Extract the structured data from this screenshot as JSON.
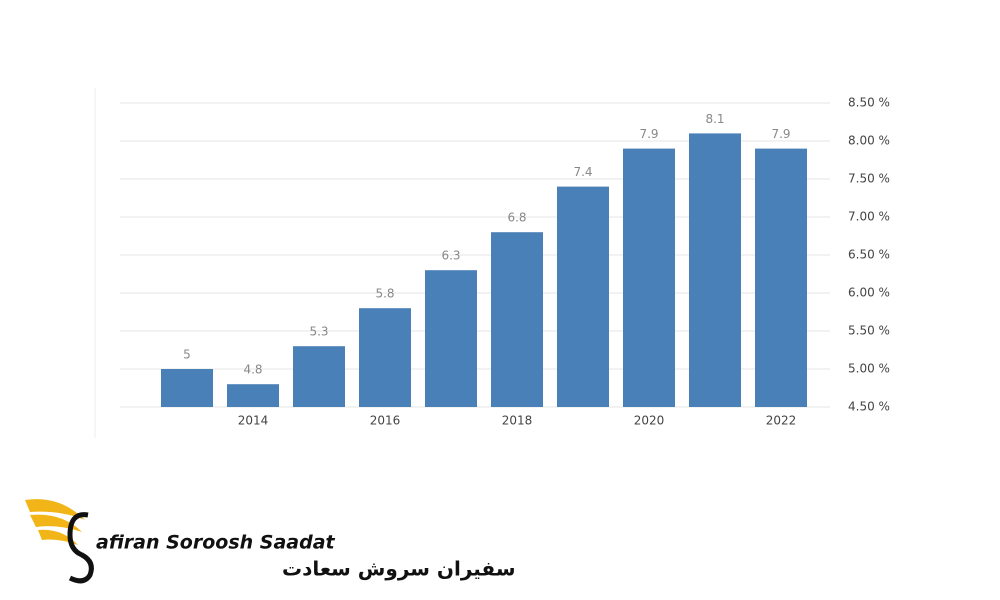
{
  "chart_data": {
    "type": "bar",
    "categories": [
      null,
      "2014",
      null,
      "2016",
      null,
      "2018",
      null,
      "2020",
      null,
      "2022"
    ],
    "values": [
      5,
      4.8,
      5.3,
      5.8,
      6.3,
      6.8,
      7.4,
      7.9,
      8.1,
      7.9
    ],
    "color": "#4a80b8",
    "ylim": [
      4.5,
      8.5
    ],
    "yticks": [
      {
        "value": 4.5,
        "label": "4.50 %"
      },
      {
        "value": 5,
        "label": "5.00 %"
      },
      {
        "value": 5.5,
        "label": "5.50 %"
      },
      {
        "value": 6,
        "label": "6.00 %"
      },
      {
        "value": 6.5,
        "label": "6.50 %"
      },
      {
        "value": 7,
        "label": "7.00 %"
      },
      {
        "value": 7.5,
        "label": "7.50 %"
      },
      {
        "value": 8,
        "label": "8.00 %"
      },
      {
        "value": 8.5,
        "label": "8.50 %"
      }
    ],
    "grid": true
  },
  "logo": {
    "name": "afiran Soroosh Saadat",
    "name_fa": "سفیران سروش سعادت"
  }
}
